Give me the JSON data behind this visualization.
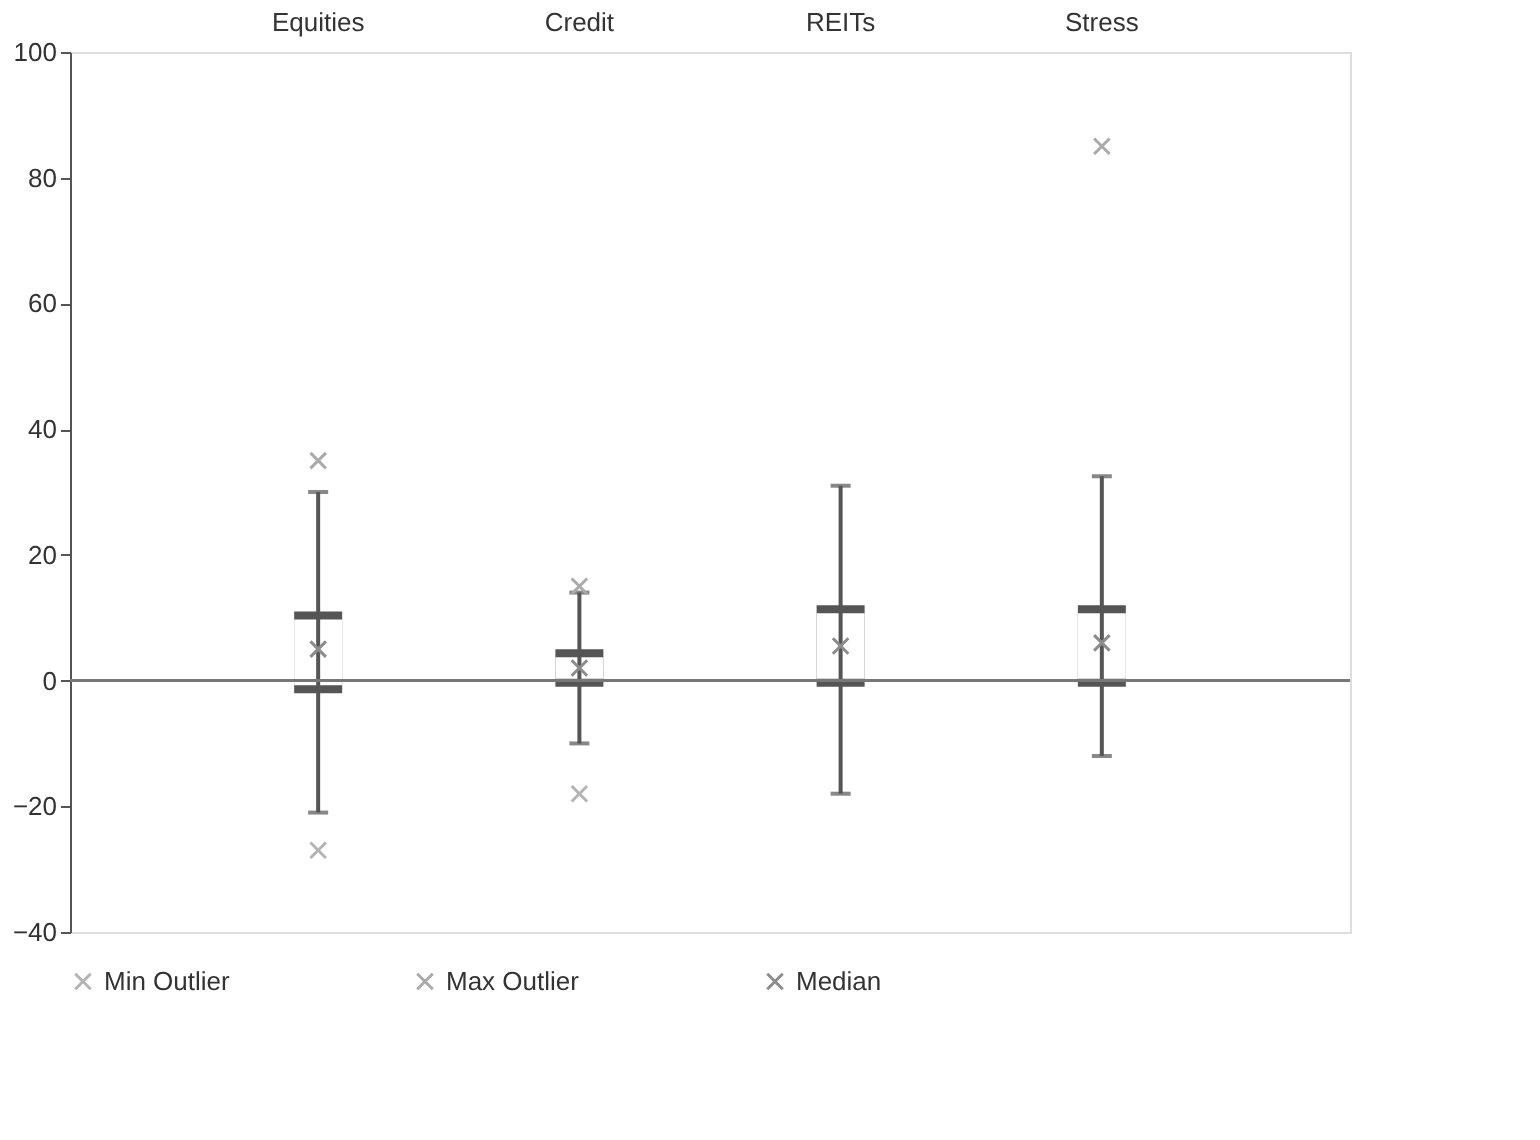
{
  "chart_data": {
    "type": "box",
    "categories": [
      "Equities",
      "Credit",
      "REITs",
      "Stress"
    ],
    "boxes": [
      {
        "low": -21,
        "q1": -2,
        "q3": 11,
        "high": 30
      },
      {
        "low": -10,
        "q1": -1,
        "q3": 5,
        "high": 14
      },
      {
        "low": -18,
        "q1": -1,
        "q3": 12,
        "high": 31
      },
      {
        "low": -12,
        "q1": -1,
        "q3": 12,
        "high": 32.5
      }
    ],
    "color": "#555555",
    "series": [
      {
        "name": "Min Outlier",
        "type": "scatter",
        "color": "#b4b4b4",
        "values": [
          -27,
          -18,
          null,
          null
        ]
      },
      {
        "name": "Max Outlier",
        "type": "scatter",
        "color": "#aaaaaa",
        "values": [
          35,
          15,
          null,
          85
        ]
      },
      {
        "name": "Median",
        "type": "scatter",
        "color": "#8c8c8c",
        "values": [
          5,
          2,
          5.5,
          6
        ]
      }
    ],
    "ylim": [
      -40,
      100
    ],
    "yticks": [
      -40,
      -20,
      0,
      20,
      40,
      60,
      80,
      100
    ],
    "ref_lines": [
      {
        "axis": "y",
        "value": 0,
        "color": "#777777"
      }
    ],
    "marker": "cross",
    "grid": false,
    "legend": "bottom"
  }
}
